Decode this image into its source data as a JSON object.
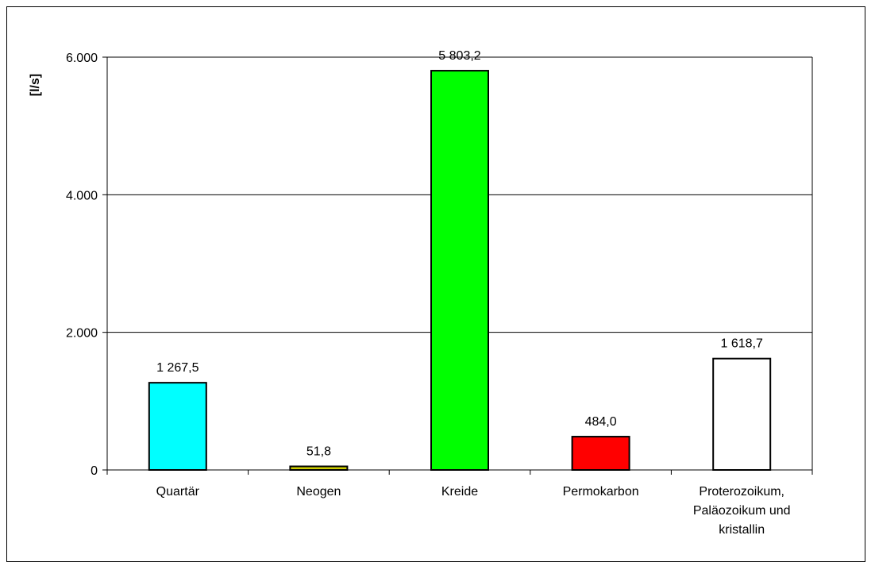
{
  "chart_data": {
    "type": "bar",
    "ylabel": "[l/s]",
    "ylim": [
      0,
      6000
    ],
    "yticks": [
      0,
      2000,
      4000,
      6000
    ],
    "ytick_labels": [
      "0",
      "2.000",
      "4.000",
      "6.000"
    ],
    "grid": true,
    "categories": [
      [
        "Quartär"
      ],
      [
        "Neogen"
      ],
      [
        "Kreide"
      ],
      [
        "Permokarbon"
      ],
      [
        "Proterozoikum,",
        "Paläozoikum und",
        "kristallin"
      ]
    ],
    "values": [
      1267.5,
      51.8,
      5803.2,
      484.0,
      1618.7
    ],
    "value_labels": [
      "1 267,5",
      "51,8",
      "5 803,2",
      "484,0",
      "1 618,7"
    ],
    "colors": [
      "#00ffff",
      "#cccc00",
      "#00ff00",
      "#ff0000",
      "#ffffff"
    ]
  }
}
